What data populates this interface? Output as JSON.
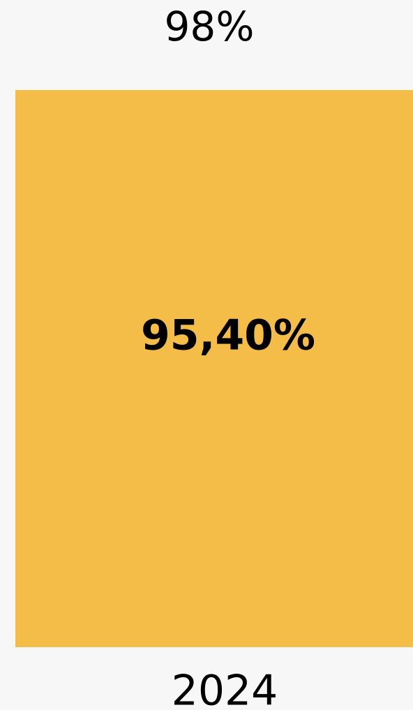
{
  "chart_data": {
    "type": "bar",
    "annotations": [
      "98%"
    ],
    "categories": [
      "2024"
    ],
    "values": [
      95.4
    ],
    "value_labels": [
      "95,40%"
    ],
    "color": "#f4bd48",
    "ylim": [
      0,
      100
    ]
  }
}
